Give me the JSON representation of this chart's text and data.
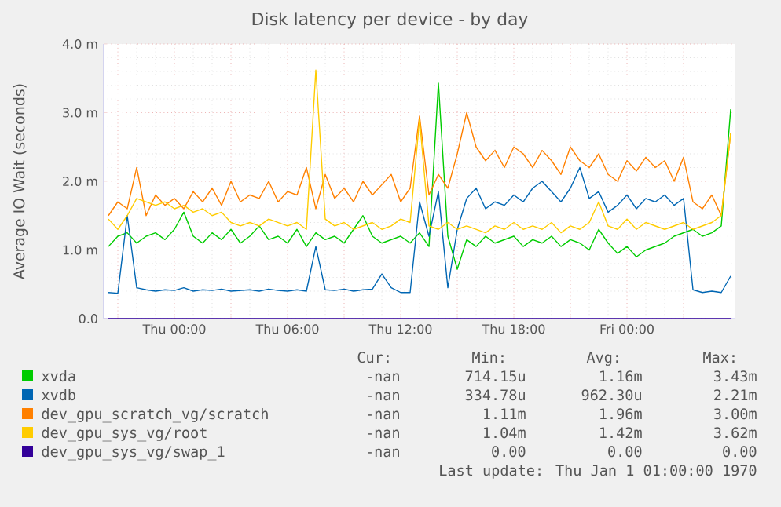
{
  "chart_data": {
    "type": "line",
    "title": "Disk latency per device - by day",
    "ylabel": "Average IO Wait (seconds)",
    "categories": [
      null,
      null,
      null,
      null,
      null,
      null,
      null,
      "Thu 00:00",
      null,
      null,
      null,
      null,
      null,
      null,
      null,
      null,
      null,
      null,
      null,
      "Thu 06:00",
      null,
      null,
      null,
      null,
      null,
      null,
      null,
      null,
      null,
      null,
      null,
      "Thu 12:00",
      null,
      null,
      null,
      null,
      null,
      null,
      null,
      null,
      null,
      null,
      null,
      "Thu 18:00",
      null,
      null,
      null,
      null,
      null,
      null,
      null,
      null,
      null,
      null,
      null,
      "Fri 00:00",
      null,
      null,
      null,
      null,
      null,
      null,
      null,
      null,
      null,
      null,
      null
    ],
    "ylim": [
      0,
      4
    ],
    "yticks": [
      {
        "value": 0,
        "label": "0.0"
      },
      {
        "value": 1,
        "label": "1.0 m"
      },
      {
        "value": 2,
        "label": "2.0 m"
      },
      {
        "value": 3,
        "label": "3.0 m"
      },
      {
        "value": 4,
        "label": "4.0 m"
      }
    ],
    "grid": true,
    "legend": "bottom",
    "series": [
      {
        "name": "xvda",
        "color": "#00cc00",
        "values": [
          1.05,
          1.2,
          1.25,
          1.1,
          1.2,
          1.25,
          1.15,
          1.3,
          1.55,
          1.2,
          1.1,
          1.25,
          1.15,
          1.3,
          1.1,
          1.2,
          1.35,
          1.15,
          1.2,
          1.1,
          1.3,
          1.05,
          1.25,
          1.15,
          1.2,
          1.1,
          1.3,
          1.5,
          1.2,
          1.1,
          1.15,
          1.2,
          1.1,
          1.25,
          1.05,
          3.43,
          1.2,
          0.72,
          1.15,
          1.05,
          1.2,
          1.1,
          1.15,
          1.2,
          1.05,
          1.15,
          1.1,
          1.2,
          1.05,
          1.15,
          1.1,
          1.0,
          1.3,
          1.1,
          0.95,
          1.05,
          0.9,
          1.0,
          1.05,
          1.1,
          1.2,
          1.25,
          1.3,
          1.2,
          1.25,
          1.35,
          3.05
        ]
      },
      {
        "name": "xvdb",
        "color": "#0066b3",
        "values": [
          0.38,
          0.37,
          1.5,
          0.45,
          0.42,
          0.4,
          0.42,
          0.41,
          0.45,
          0.4,
          0.42,
          0.41,
          0.43,
          0.4,
          0.41,
          0.42,
          0.4,
          0.43,
          0.41,
          0.4,
          0.42,
          0.4,
          1.05,
          0.42,
          0.41,
          0.43,
          0.4,
          0.42,
          0.43,
          0.65,
          0.45,
          0.38,
          0.38,
          1.7,
          1.2,
          1.85,
          0.45,
          1.3,
          1.75,
          1.9,
          1.6,
          1.7,
          1.65,
          1.8,
          1.7,
          1.9,
          2.0,
          1.85,
          1.7,
          1.9,
          2.2,
          1.75,
          1.85,
          1.55,
          1.65,
          1.8,
          1.6,
          1.75,
          1.7,
          1.8,
          1.65,
          1.75,
          0.42,
          0.38,
          0.4,
          0.38,
          0.62
        ]
      },
      {
        "name": "dev_gpu_scratch_vg/scratch",
        "color": "#ff8000",
        "values": [
          1.5,
          1.7,
          1.6,
          2.2,
          1.5,
          1.8,
          1.65,
          1.75,
          1.6,
          1.85,
          1.7,
          1.9,
          1.65,
          2.0,
          1.7,
          1.8,
          1.75,
          2.0,
          1.7,
          1.85,
          1.8,
          2.2,
          1.6,
          2.1,
          1.75,
          1.9,
          1.7,
          2.0,
          1.8,
          1.95,
          2.1,
          1.7,
          1.9,
          2.95,
          1.8,
          2.1,
          1.9,
          2.4,
          3.0,
          2.5,
          2.3,
          2.45,
          2.2,
          2.5,
          2.4,
          2.2,
          2.45,
          2.3,
          2.1,
          2.5,
          2.3,
          2.2,
          2.4,
          2.1,
          2.0,
          2.3,
          2.15,
          2.35,
          2.2,
          2.3,
          2.0,
          2.35,
          1.7,
          1.6,
          1.8,
          1.5,
          2.7
        ]
      },
      {
        "name": "dev_gpu_sys_vg/root",
        "color": "#ffcc00",
        "values": [
          1.45,
          1.3,
          1.5,
          1.75,
          1.7,
          1.65,
          1.7,
          1.6,
          1.65,
          1.55,
          1.6,
          1.5,
          1.55,
          1.4,
          1.35,
          1.4,
          1.35,
          1.45,
          1.4,
          1.35,
          1.4,
          1.3,
          3.62,
          1.45,
          1.35,
          1.4,
          1.3,
          1.35,
          1.4,
          1.3,
          1.35,
          1.45,
          1.4,
          2.9,
          1.35,
          1.3,
          1.4,
          1.3,
          1.35,
          1.3,
          1.25,
          1.35,
          1.3,
          1.4,
          1.3,
          1.35,
          1.3,
          1.4,
          1.25,
          1.35,
          1.3,
          1.4,
          1.7,
          1.35,
          1.3,
          1.45,
          1.3,
          1.4,
          1.35,
          1.3,
          1.35,
          1.4,
          1.3,
          1.35,
          1.4,
          1.5,
          2.7
        ]
      },
      {
        "name": "dev_gpu_sys_vg/swap_1",
        "color": "#330099",
        "values": [
          0,
          0,
          0,
          0,
          0,
          0,
          0,
          0,
          0,
          0,
          0,
          0,
          0,
          0,
          0,
          0,
          0,
          0,
          0,
          0,
          0,
          0,
          0,
          0,
          0,
          0,
          0,
          0,
          0,
          0,
          0,
          0,
          0,
          0,
          0,
          0,
          0,
          0,
          0,
          0,
          0,
          0,
          0,
          0,
          0,
          0,
          0,
          0,
          0,
          0,
          0,
          0,
          0,
          0,
          0,
          0,
          0,
          0,
          0,
          0,
          0,
          0,
          0,
          0,
          0,
          0,
          0
        ]
      }
    ],
    "annotations": [
      "Cur:",
      "Min:",
      "Avg:",
      "Max:",
      "-nan",
      "714.15u",
      "1.16m",
      "3.43m",
      "-nan",
      "334.78u",
      "962.30u",
      "2.21m",
      "-nan",
      "1.11m",
      "1.96m",
      "3.00m",
      "-nan",
      "1.04m",
      "1.42m",
      "3.62m",
      "-nan",
      "0.00",
      "0.00",
      "0.00",
      "Last update: Thu Jan 1 01:00:00 1970"
    ]
  }
}
